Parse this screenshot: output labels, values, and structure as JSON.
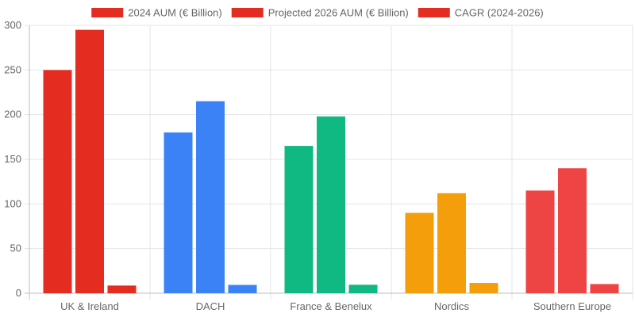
{
  "chart_data": {
    "type": "bar",
    "categories": [
      "UK & Ireland",
      "DACH",
      "France & Benelux",
      "Nordics",
      "Southern Europe"
    ],
    "series": [
      {
        "name": "2024 AUM (€ Billion)",
        "values": [
          250,
          180,
          165,
          90,
          115
        ]
      },
      {
        "name": "Projected 2026 AUM (€ Billion)",
        "values": [
          295,
          215,
          198,
          112,
          140
        ]
      },
      {
        "name": "CAGR (2024-2026)",
        "values": [
          8.6,
          9.3,
          9.5,
          11.5,
          10.3
        ]
      }
    ],
    "category_colors": [
      "#e42d20",
      "#3b82f6",
      "#10b981",
      "#f59e0b",
      "#ef4444"
    ],
    "legend_color": "#e42d20",
    "legend_position": "top",
    "ylim": [
      0,
      300
    ],
    "yticks": [
      0,
      50,
      100,
      150,
      200,
      250,
      300
    ],
    "grid": true,
    "title": "",
    "xlabel": "",
    "ylabel": ""
  }
}
